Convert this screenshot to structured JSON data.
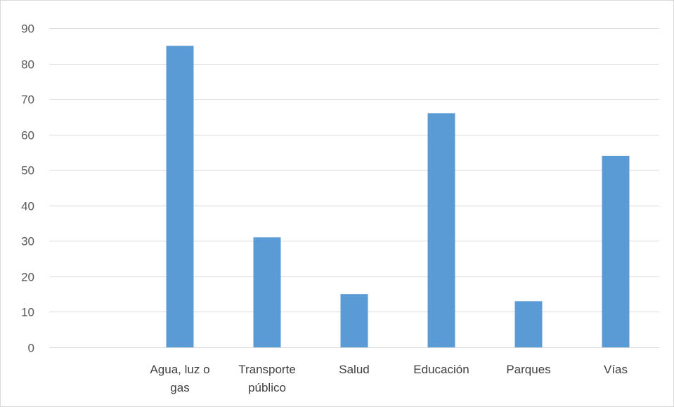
{
  "chart_data": {
    "type": "bar",
    "title": "",
    "xlabel": "",
    "ylabel": "",
    "ylim": [
      0,
      90
    ],
    "yticks": [
      0,
      10,
      20,
      30,
      40,
      50,
      60,
      70,
      80,
      90
    ],
    "grid": true,
    "legend": "none",
    "categories": [
      "",
      "Agua, luz o gas",
      "Transporte público",
      "Salud",
      "Educación",
      "Parques",
      "Vías"
    ],
    "category_lines": [
      [],
      [
        "Agua, luz o",
        "gas"
      ],
      [
        "Transporte",
        "público"
      ],
      [
        "Salud"
      ],
      [
        "Educación"
      ],
      [
        "Parques"
      ],
      [
        "Vías"
      ]
    ],
    "values": [
      null,
      85,
      31,
      15,
      66,
      13,
      54
    ],
    "colors": {
      "bar": "#5b9bd5",
      "grid": "#d9d9d9",
      "text": "#595959"
    }
  }
}
